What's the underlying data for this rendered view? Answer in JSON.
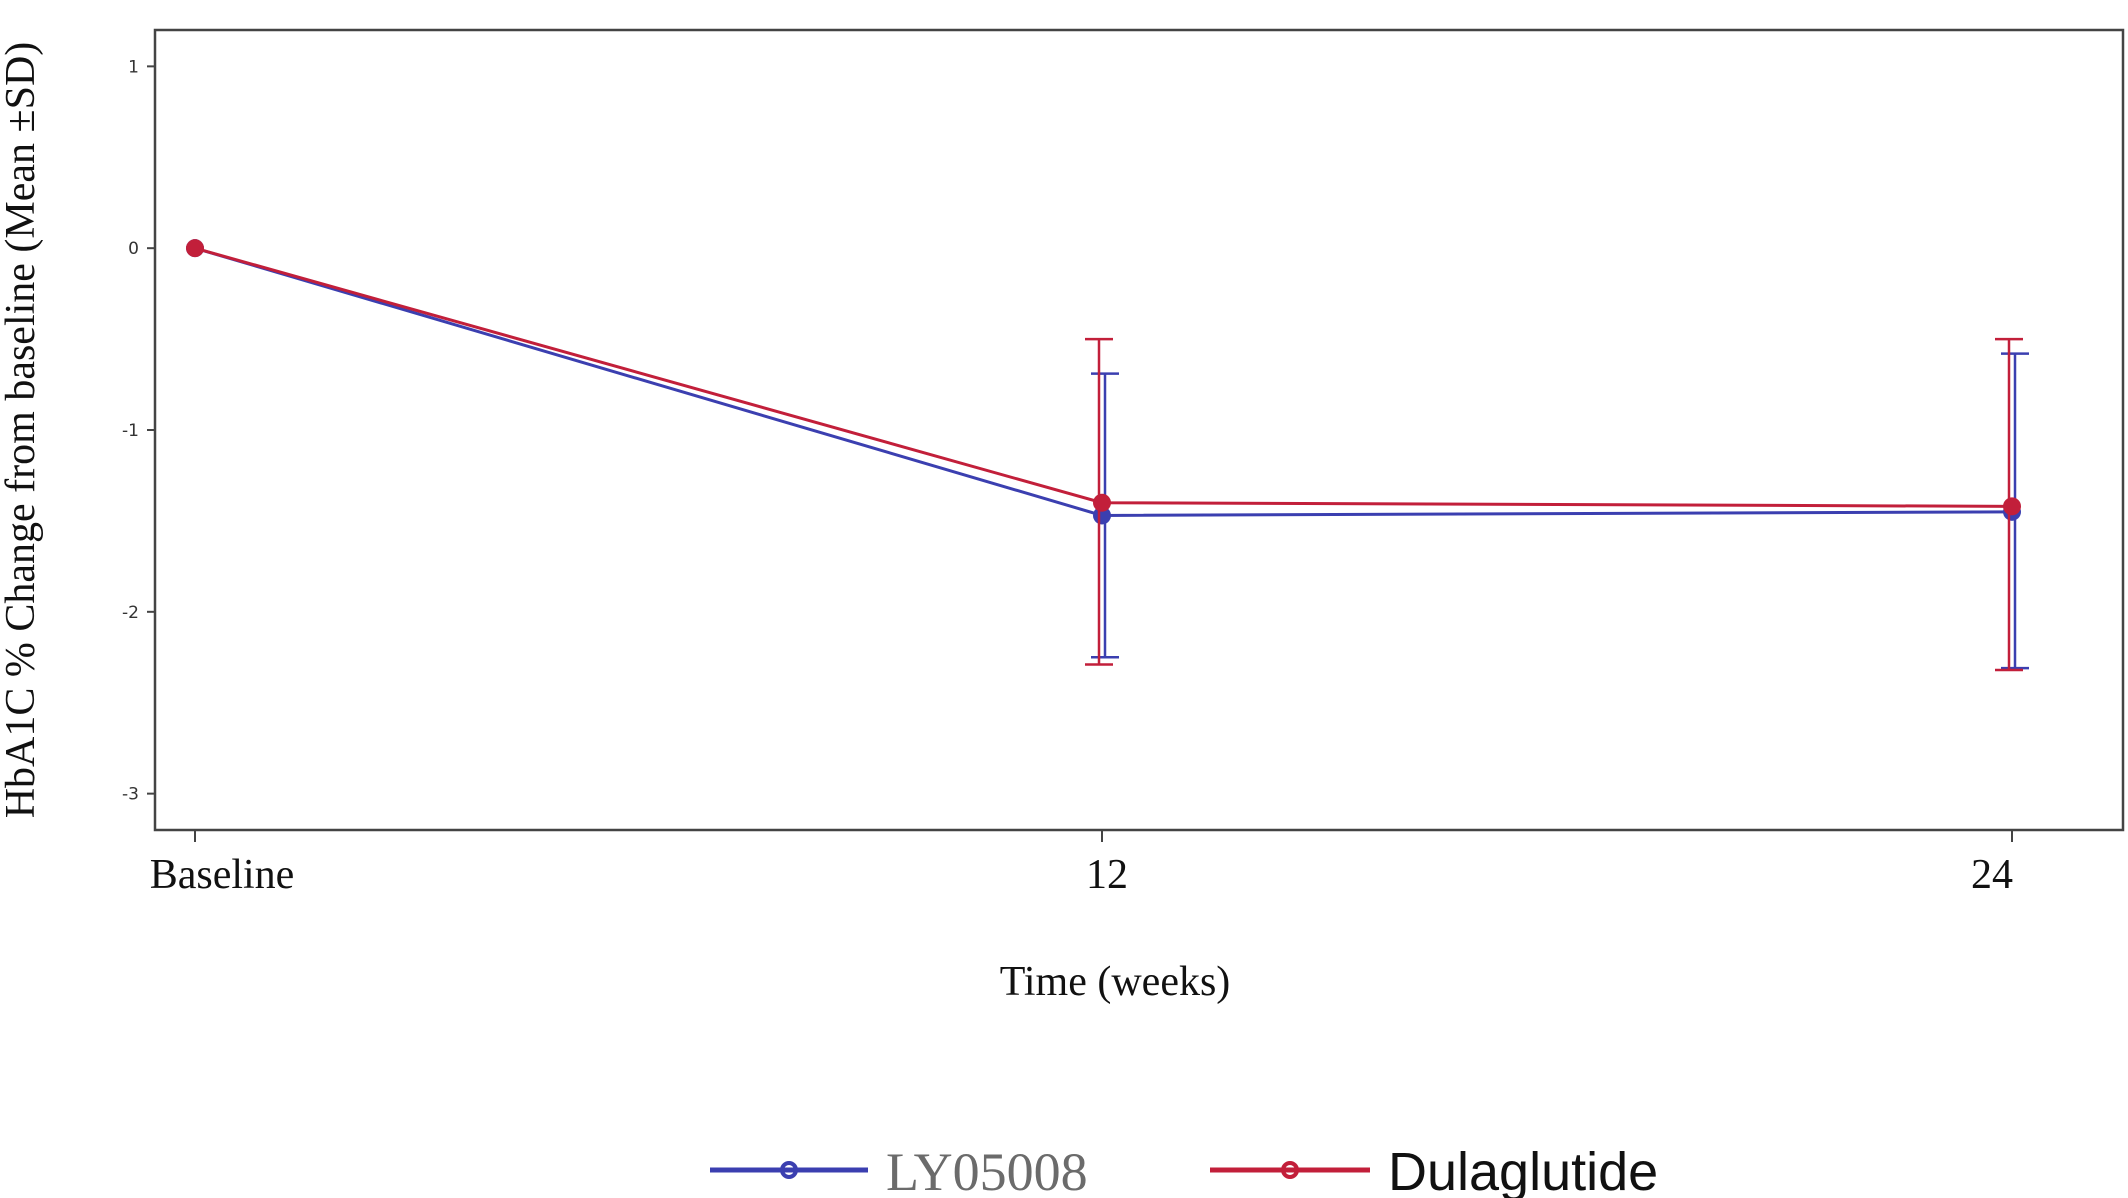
{
  "chart_data": {
    "type": "line",
    "title": "",
    "xlabel": "Time (weeks)",
    "ylabel": "HbA1C % Change from baseline (Mean ±SD)",
    "categories": [
      "Baseline",
      "12",
      "24"
    ],
    "ylim": [
      -3.2,
      1.2
    ],
    "yticks": [
      1,
      0,
      -1,
      -2,
      -3
    ],
    "ytick_labels": [
      "1",
      "0",
      "-1",
      "-2",
      "-3"
    ],
    "grid": false,
    "legend_position": "bottom",
    "series": [
      {
        "name": "LY05008",
        "color": "#3b3fb0",
        "values": [
          0,
          -1.47,
          -1.45
        ],
        "sd_low": [
          0,
          -2.25,
          -2.31
        ],
        "sd_high": [
          0,
          -0.69,
          -0.58
        ]
      },
      {
        "name": "Dulaglutide",
        "color": "#c21f3a",
        "values": [
          0,
          -1.4,
          -1.42
        ],
        "sd_low": [
          0,
          -2.29,
          -2.32
        ],
        "sd_high": [
          0,
          -0.5,
          -0.5
        ]
      }
    ]
  }
}
